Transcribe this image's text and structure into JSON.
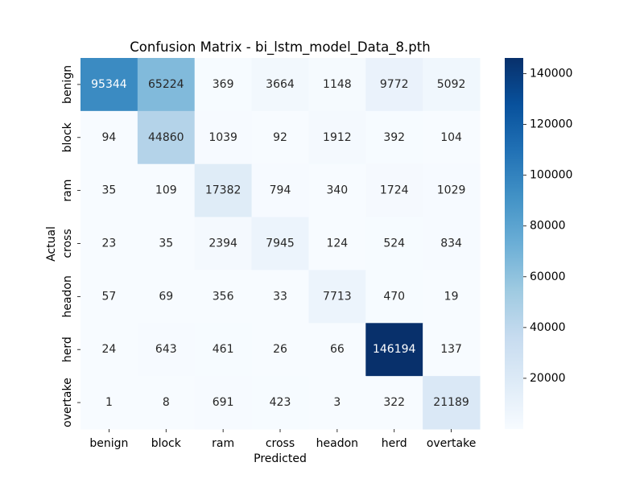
{
  "chart_data": {
    "type": "heatmap",
    "title": "Confusion Matrix - bi_lstm_model_Data_8.pth",
    "xlabel": "Predicted",
    "ylabel": "Actual",
    "x_categories": [
      "benign",
      "block",
      "ram",
      "cross",
      "headon",
      "herd",
      "overtake"
    ],
    "y_categories": [
      "benign",
      "block",
      "ram",
      "cross",
      "headon",
      "herd",
      "overtake"
    ],
    "values": [
      [
        95344,
        65224,
        369,
        3664,
        1148,
        9772,
        5092
      ],
      [
        94,
        44860,
        1039,
        92,
        1912,
        392,
        104
      ],
      [
        35,
        109,
        17382,
        794,
        340,
        1724,
        1029
      ],
      [
        23,
        35,
        2394,
        7945,
        124,
        524,
        834
      ],
      [
        57,
        69,
        356,
        33,
        7713,
        470,
        19
      ],
      [
        24,
        643,
        461,
        26,
        66,
        146194,
        137
      ],
      [
        1,
        8,
        691,
        423,
        3,
        322,
        21189
      ]
    ],
    "colormap": "Blues",
    "vmin": 1,
    "vmax": 146194,
    "colorbar": {
      "ticks": [
        20000,
        40000,
        60000,
        80000,
        100000,
        120000,
        140000
      ],
      "tick_labels": [
        "20000",
        "40000",
        "60000",
        "80000",
        "100000",
        "120000",
        "140000"
      ]
    }
  }
}
